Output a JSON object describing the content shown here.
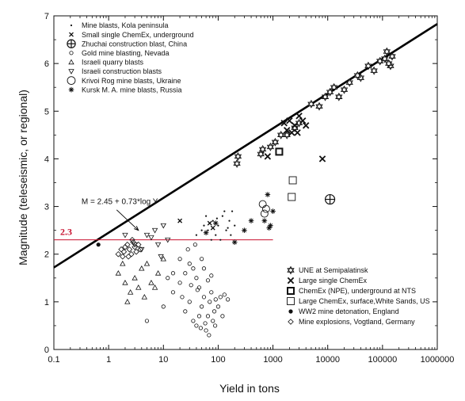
{
  "chart_data": {
    "type": "scatter",
    "xlabel": "Yield in tons",
    "ylabel": "Magnitude (teleseismic, or regional)",
    "xscale": "log",
    "xlim": [
      0.1,
      1000000
    ],
    "ylim": [
      0,
      7
    ],
    "x_ticks": [
      "0.1",
      "1",
      "10",
      "100",
      "1000",
      "10000",
      "100000",
      "1000000"
    ],
    "y_ticks": [
      "0",
      "1",
      "2",
      "3",
      "4",
      "5",
      "6",
      "7"
    ],
    "legend_top_left": [
      {
        "label": "Mine blasts, Kola peninsula",
        "marker": "dot"
      },
      {
        "label": "Small single ChemEx, underground",
        "marker": "x"
      },
      {
        "label": "Zhuchai construction blast, China",
        "marker": "circle-cross"
      },
      {
        "label": "Gold mine blasting, Nevada",
        "marker": "circle-small"
      },
      {
        "label": "Israeli quarry blasts",
        "marker": "triangle-up"
      },
      {
        "label": "Israeli construction blasts",
        "marker": "triangle-down"
      },
      {
        "label": "Krivoi Rog mine blasts, Ukraine",
        "marker": "circle-large"
      },
      {
        "label": "Kursk M. A. mine blasts, Russia",
        "marker": "asterisk"
      }
    ],
    "legend_bottom_right": [
      {
        "label": "UNE at Semipalatinsk",
        "marker": "star-of-david"
      },
      {
        "label": "Large single ChemEx",
        "marker": "x-large"
      },
      {
        "label": "ChemEx (NPE), underground at NTS",
        "marker": "square-bold"
      },
      {
        "label": "Large ChemEx, surface,White Sands, US",
        "marker": "square-open"
      },
      {
        "label": "WW2 mine detonation, England",
        "marker": "dot-filled"
      },
      {
        "label": "Mine explosions, Vogtland, Germany",
        "marker": "diamond"
      }
    ],
    "fit_line": {
      "label": "M = 2.45 + 0.73*log Y",
      "intercept": 2.45,
      "slope": 0.73
    },
    "reference_line": {
      "label": "2.3",
      "y": 2.3,
      "x_from": 0.1,
      "x_to": 1000,
      "color": "#c8102e"
    },
    "series": [
      {
        "name": "Mine blasts, Kola peninsula",
        "marker": "dot",
        "points": [
          [
            40,
            2.4
          ],
          [
            55,
            2.6
          ],
          [
            65,
            2.5
          ],
          [
            80,
            2.7
          ],
          [
            90,
            2.4
          ],
          [
            100,
            2.6
          ],
          [
            120,
            2.8
          ],
          [
            140,
            2.5
          ],
          [
            160,
            2.7
          ],
          [
            180,
            2.9
          ],
          [
            200,
            2.6
          ],
          [
            60,
            2.8
          ],
          [
            75,
            2.3
          ],
          [
            110,
            2.3
          ],
          [
            130,
            2.9
          ],
          [
            50,
            2.5
          ],
          [
            170,
            2.4
          ],
          [
            95,
            2.75
          ],
          [
            70,
            2.65
          ],
          [
            150,
            2.55
          ]
        ]
      },
      {
        "name": "Small single ChemEx, underground",
        "marker": "x",
        "points": [
          [
            20,
            2.7
          ],
          [
            70,
            2.65
          ],
          [
            80,
            2.55
          ]
        ]
      },
      {
        "name": "Zhuchai construction blast, China",
        "marker": "circle-cross",
        "points": [
          [
            11000,
            3.15
          ]
        ]
      },
      {
        "name": "Gold mine blasting, Nevada",
        "marker": "circle-small",
        "points": [
          [
            5,
            0.6
          ],
          [
            10,
            0.9
          ],
          [
            15,
            1.2
          ],
          [
            20,
            1.4
          ],
          [
            25,
            0.8
          ],
          [
            30,
            1.0
          ],
          [
            35,
            0.6
          ],
          [
            40,
            0.5
          ],
          [
            45,
            0.7
          ],
          [
            50,
            0.9
          ],
          [
            55,
            1.1
          ],
          [
            60,
            0.4
          ],
          [
            65,
            0.7
          ],
          [
            70,
            1.0
          ],
          [
            75,
            1.2
          ],
          [
            80,
            0.6
          ],
          [
            85,
            0.8
          ],
          [
            90,
            1.05
          ],
          [
            100,
            0.9
          ],
          [
            110,
            1.1
          ],
          [
            120,
            0.7
          ],
          [
            130,
            1.15
          ],
          [
            150,
            1.05
          ],
          [
            25,
            1.6
          ],
          [
            30,
            1.8
          ],
          [
            35,
            1.7
          ],
          [
            40,
            1.5
          ],
          [
            45,
            1.3
          ],
          [
            50,
            1.9
          ],
          [
            20,
            1.9
          ],
          [
            15,
            1.6
          ],
          [
            12,
            1.5
          ],
          [
            28,
            2.1
          ],
          [
            38,
            2.2
          ],
          [
            55,
            1.7
          ],
          [
            65,
            1.45
          ],
          [
            75,
            1.55
          ],
          [
            42,
            1.25
          ],
          [
            32,
            1.35
          ],
          [
            58,
            0.55
          ],
          [
            48,
            0.45
          ],
          [
            68,
            0.3
          ],
          [
            88,
            0.5
          ],
          [
            22,
            1.1
          ]
        ]
      },
      {
        "name": "Israeli quarry blasts",
        "marker": "triangle-up",
        "points": [
          [
            1.5,
            1.6
          ],
          [
            2,
            1.4
          ],
          [
            2.5,
            1.2
          ],
          [
            3,
            1.5
          ],
          [
            3.5,
            1.3
          ],
          [
            4,
            1.7
          ],
          [
            5,
            1.8
          ],
          [
            6,
            1.4
          ],
          [
            8,
            1.6
          ],
          [
            10,
            1.9
          ],
          [
            1.8,
            1.8
          ],
          [
            4.5,
            1.1
          ],
          [
            7,
            1.3
          ],
          [
            2.2,
            1.0
          ]
        ]
      },
      {
        "name": "Israeli construction blasts",
        "marker": "triangle-down",
        "points": [
          [
            2,
            2.4
          ],
          [
            3,
            2.2
          ],
          [
            5,
            2.4
          ],
          [
            8,
            2.2
          ],
          [
            9,
            1.95
          ],
          [
            4,
            2.1
          ],
          [
            6,
            2.35
          ],
          [
            7,
            2.5
          ],
          [
            10,
            2.6
          ],
          [
            12,
            2.3
          ]
        ]
      },
      {
        "name": "Krivoi Rog mine blasts, Ukraine",
        "marker": "circle-large",
        "points": [
          [
            700,
            2.85
          ],
          [
            750,
            2.95
          ],
          [
            650,
            3.05
          ]
        ]
      },
      {
        "name": "Kursk M. A. mine blasts, Russia",
        "marker": "asterisk",
        "points": [
          [
            200,
            2.25
          ],
          [
            300,
            2.5
          ],
          [
            400,
            2.7
          ],
          [
            700,
            2.7
          ],
          [
            800,
            3.25
          ],
          [
            900,
            2.6
          ],
          [
            1000,
            2.9
          ],
          [
            850,
            2.55
          ],
          [
            60,
            2.45
          ],
          [
            90,
            2.65
          ]
        ]
      },
      {
        "name": "UNE at Semipalatinsk",
        "marker": "star-of-david",
        "points": [
          [
            220,
            3.9
          ],
          [
            230,
            4.05
          ],
          [
            600,
            4.1
          ],
          [
            650,
            4.2
          ],
          [
            900,
            4.25
          ],
          [
            1100,
            4.35
          ],
          [
            1400,
            4.5
          ],
          [
            1800,
            4.5
          ],
          [
            2500,
            4.65
          ],
          [
            3000,
            4.75
          ],
          [
            5000,
            5.15
          ],
          [
            7000,
            5.1
          ],
          [
            9000,
            5.3
          ],
          [
            11000,
            5.4
          ],
          [
            13000,
            5.5
          ],
          [
            20000,
            5.45
          ],
          [
            25000,
            5.6
          ],
          [
            40000,
            5.7
          ],
          [
            55000,
            5.95
          ],
          [
            70000,
            5.85
          ],
          [
            90000,
            6.05
          ],
          [
            110000,
            6.1
          ],
          [
            120000,
            6.25
          ],
          [
            140000,
            5.95
          ],
          [
            150000,
            6.15
          ],
          [
            130000,
            6.0
          ],
          [
            16000,
            5.3
          ],
          [
            35000,
            5.75
          ]
        ]
      },
      {
        "name": "Large single ChemEx",
        "marker": "x-large",
        "points": [
          [
            800,
            4.05
          ],
          [
            1600,
            4.75
          ],
          [
            1800,
            4.6
          ],
          [
            2000,
            4.8
          ],
          [
            2200,
            4.55
          ],
          [
            2500,
            4.7
          ],
          [
            3000,
            4.9
          ],
          [
            3500,
            4.8
          ],
          [
            4000,
            4.7
          ],
          [
            2800,
            4.55
          ],
          [
            8000,
            4.0
          ]
        ]
      },
      {
        "name": "ChemEx (NPE), underground at NTS",
        "marker": "square-bold",
        "points": [
          [
            1300,
            4.15
          ]
        ]
      },
      {
        "name": "Large ChemEx, surface,White Sands, US",
        "marker": "square-open",
        "points": [
          [
            2300,
            3.55
          ],
          [
            2200,
            3.2
          ]
        ]
      },
      {
        "name": "WW2 mine detonation, England",
        "marker": "dot-filled",
        "points": [
          [
            0.65,
            2.2
          ]
        ]
      },
      {
        "name": "Mine explosions, Vogtland, Germany",
        "marker": "diamond",
        "points": [
          [
            1.5,
            2.0
          ],
          [
            1.7,
            2.1
          ],
          [
            1.9,
            2.05
          ],
          [
            2.0,
            2.15
          ],
          [
            2.2,
            2.2
          ],
          [
            2.4,
            2.1
          ],
          [
            2.6,
            2.0
          ],
          [
            2.8,
            2.25
          ],
          [
            3.0,
            2.15
          ],
          [
            3.2,
            2.05
          ],
          [
            3.5,
            2.2
          ],
          [
            1.8,
            1.95
          ],
          [
            2.3,
            1.95
          ],
          [
            2.7,
            2.3
          ],
          [
            3.8,
            2.1
          ]
        ]
      }
    ]
  }
}
